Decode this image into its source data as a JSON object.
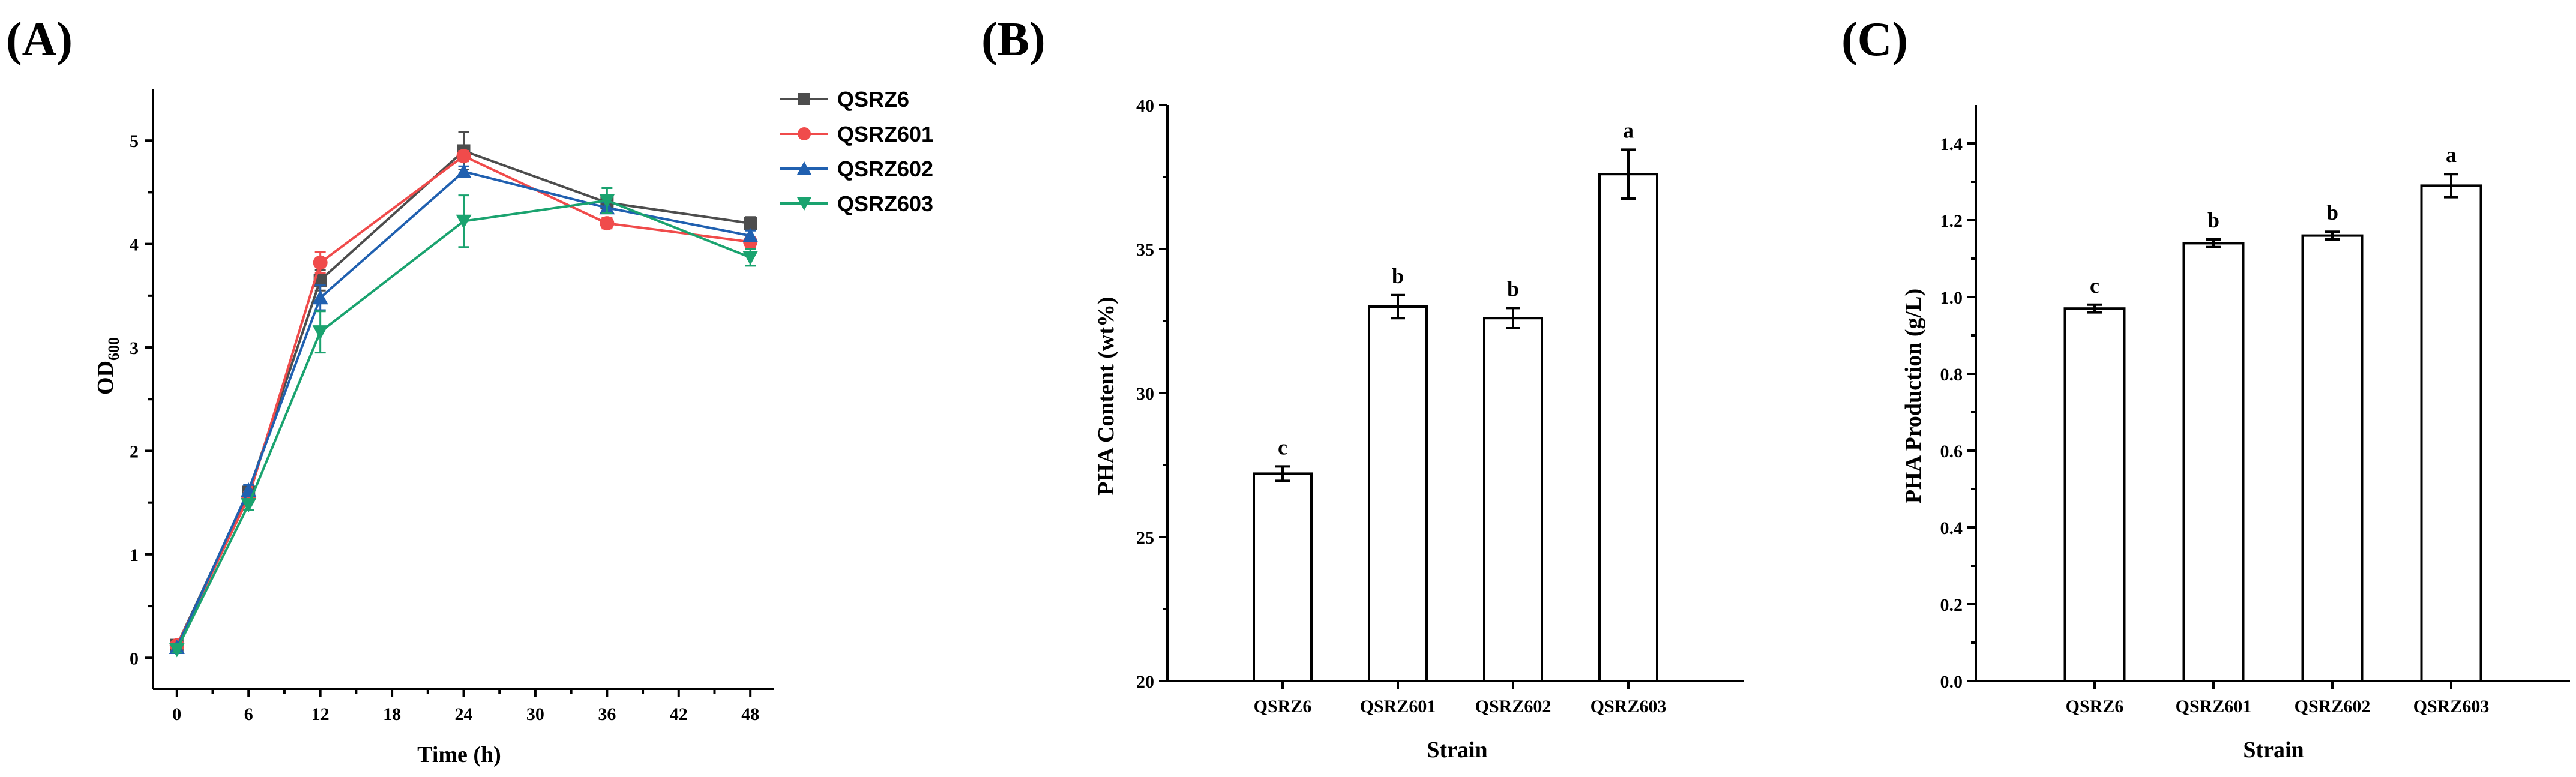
{
  "chart_data": [
    {
      "panel": "(A)",
      "type": "line",
      "title": "",
      "xlabel": "Time (h)",
      "ylabel_main": "OD",
      "ylabel_sub": "600",
      "xlim": [
        -2,
        50
      ],
      "ylim": [
        -0.3,
        5.5
      ],
      "xticks": [
        0,
        6,
        12,
        18,
        24,
        30,
        36,
        42,
        48
      ],
      "yticks": [
        0,
        1,
        2,
        3,
        4,
        5
      ],
      "x": [
        0,
        6,
        12,
        24,
        36,
        48
      ],
      "series": [
        {
          "name": "QSRZ6",
          "color": "#4d4d4d",
          "marker": "square",
          "values": [
            0.12,
            1.6,
            3.65,
            4.9,
            4.4,
            4.2
          ],
          "errors": [
            0.03,
            0.05,
            0.1,
            0.18,
            0.05,
            0.06
          ]
        },
        {
          "name": "QSRZ601",
          "color": "#f04b4b",
          "marker": "circle",
          "values": [
            0.12,
            1.55,
            3.82,
            4.85,
            4.2,
            4.02
          ],
          "errors": [
            0.03,
            0.05,
            0.1,
            0.05,
            0.05,
            0.05
          ]
        },
        {
          "name": "QSRZ602",
          "color": "#2060b0",
          "marker": "triangle-up",
          "values": [
            0.1,
            1.62,
            3.48,
            4.7,
            4.35,
            4.08
          ],
          "errors": [
            0.03,
            0.05,
            0.12,
            0.05,
            0.05,
            0.05
          ]
        },
        {
          "name": "QSRZ603",
          "color": "#1aa36f",
          "marker": "triangle-down",
          "values": [
            0.08,
            1.48,
            3.15,
            4.22,
            4.42,
            3.87
          ],
          "errors": [
            0.03,
            0.05,
            0.2,
            0.25,
            0.12,
            0.08
          ]
        }
      ]
    },
    {
      "panel": "(B)",
      "type": "bar",
      "title": "",
      "xlabel": "Strain",
      "ylabel": "PHA Content (wt%)",
      "ylim": [
        20,
        40
      ],
      "yticks": [
        "20",
        "25",
        "30",
        "35",
        "40"
      ],
      "categories": [
        "QSRZ6",
        "QSRZ601",
        "QSRZ602",
        "QSRZ603"
      ],
      "values": [
        27.2,
        33.0,
        32.6,
        37.6
      ],
      "errors": [
        0.25,
        0.4,
        0.35,
        0.85
      ],
      "significance": [
        "c",
        "b",
        "b",
        "a"
      ]
    },
    {
      "panel": "(C)",
      "type": "bar",
      "title": "",
      "xlabel": "Strain",
      "ylabel": "PHA Production (g/L)",
      "ylim": [
        0,
        1.5
      ],
      "yticks": [
        "0.0",
        "0.2",
        "0.4",
        "0.6",
        "0.8",
        "1.0",
        "1.2",
        "1.4"
      ],
      "categories": [
        "QSRZ6",
        "QSRZ601",
        "QSRZ602",
        "QSRZ603"
      ],
      "values": [
        0.97,
        1.14,
        1.16,
        1.29
      ],
      "errors": [
        0.01,
        0.01,
        0.01,
        0.03
      ],
      "significance": [
        "c",
        "b",
        "b",
        "a"
      ]
    }
  ]
}
